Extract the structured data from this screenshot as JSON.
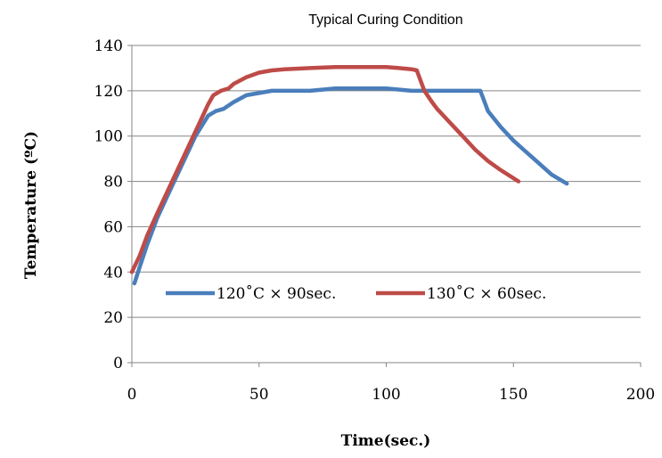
{
  "chart_data": {
    "type": "line",
    "title": "Typical Curing Condition",
    "xlabel": "Time(sec.)",
    "ylabel": "Temperature (ºC)",
    "xlim": [
      0,
      200
    ],
    "ylim": [
      0,
      140
    ],
    "xticks": [
      0,
      50,
      100,
      150,
      200
    ],
    "yticks": [
      0,
      20,
      40,
      60,
      80,
      100,
      120,
      140
    ],
    "grid": "horizontal",
    "legend_position": "bottom-center",
    "series": [
      {
        "name": "120˚C × 90sec.",
        "color": "#4a7ebb",
        "x": [
          1,
          3,
          6,
          10,
          15,
          20,
          25,
          30,
          33,
          36,
          40,
          45,
          50,
          55,
          60,
          70,
          80,
          90,
          100,
          110,
          120,
          130,
          137,
          138,
          140,
          145,
          150,
          155,
          160,
          165,
          171
        ],
        "y": [
          35,
          42,
          52,
          64,
          76,
          88,
          100,
          109,
          111,
          112,
          115,
          118,
          119,
          120,
          120,
          120,
          121,
          121,
          121,
          120,
          120,
          120,
          120,
          117,
          111,
          104,
          98,
          93,
          88,
          83,
          79
        ]
      },
      {
        "name": "130˚C × 60sec.",
        "color": "#be4b48",
        "x": [
          0,
          3,
          6,
          10,
          15,
          20,
          25,
          30,
          32,
          35,
          38,
          40,
          45,
          50,
          55,
          60,
          70,
          80,
          90,
          100,
          105,
          110,
          112,
          113,
          115,
          118,
          120,
          125,
          130,
          135,
          140,
          145,
          152
        ],
        "y": [
          40,
          47,
          56,
          66,
          78,
          90,
          102,
          114,
          118,
          120,
          121,
          123,
          126,
          128,
          129,
          129.5,
          130,
          130.5,
          130.5,
          130.5,
          130,
          129.5,
          129,
          126,
          120,
          115,
          112,
          106,
          100,
          94,
          89,
          85,
          80
        ]
      }
    ]
  }
}
